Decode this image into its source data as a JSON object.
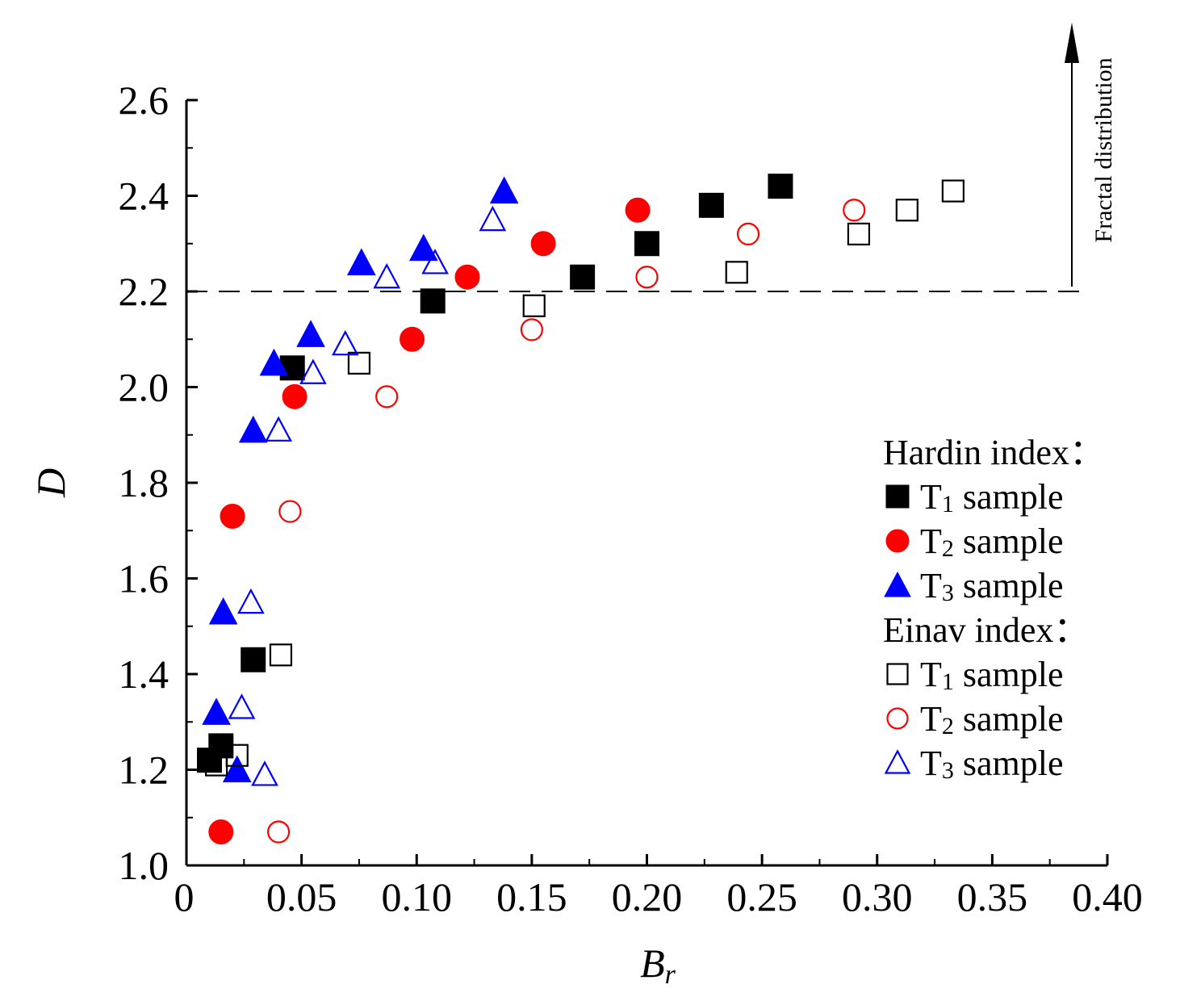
{
  "chart_data": {
    "type": "scatter",
    "title": "",
    "xlabel": "Br",
    "ylabel": "D",
    "xlim": [
      0,
      0.4
    ],
    "ylim": [
      1.0,
      2.6
    ],
    "x_ticks": [
      "0",
      "0.05",
      "0.10",
      "0.15",
      "0.20",
      "0.25",
      "0.30",
      "0.35",
      "0.40"
    ],
    "x_tick_values": [
      0,
      0.05,
      0.1,
      0.15,
      0.2,
      0.25,
      0.3,
      0.35,
      0.4
    ],
    "y_ticks": [
      "1.0",
      "1.2",
      "1.4",
      "1.6",
      "1.8",
      "2.0",
      "2.2",
      "2.4",
      "2.6"
    ],
    "y_tick_values": [
      1.0,
      1.2,
      1.4,
      1.6,
      1.8,
      2.0,
      2.2,
      2.4,
      2.6
    ],
    "grid": false,
    "reference_line": {
      "y": 2.2,
      "style": "dashed"
    },
    "annotation": "Fractal distribution",
    "legend": {
      "placement": "right",
      "groups": [
        {
          "title": "Hardin index：",
          "entries": [
            0,
            1,
            2
          ]
        },
        {
          "title": "Einav index：",
          "entries": [
            3,
            4,
            5
          ]
        }
      ]
    },
    "series": [
      {
        "name": "T1 sample",
        "sub": "1",
        "group": "Hardin index",
        "marker": "square",
        "filled": true,
        "color": "#000000",
        "points": [
          [
            0.01,
            1.22
          ],
          [
            0.015,
            1.25
          ],
          [
            0.029,
            1.43
          ],
          [
            0.046,
            2.04
          ],
          [
            0.107,
            2.18
          ],
          [
            0.172,
            2.23
          ],
          [
            0.2,
            2.3
          ],
          [
            0.228,
            2.38
          ],
          [
            0.258,
            2.42
          ]
        ]
      },
      {
        "name": "T2 sample",
        "sub": "2",
        "group": "Hardin index",
        "marker": "circle",
        "filled": true,
        "color": "#ff0000",
        "points": [
          [
            0.015,
            1.07
          ],
          [
            0.02,
            1.73
          ],
          [
            0.047,
            1.98
          ],
          [
            0.098,
            2.1
          ],
          [
            0.122,
            2.23
          ],
          [
            0.155,
            2.3
          ],
          [
            0.196,
            2.37
          ]
        ]
      },
      {
        "name": "T3 sample",
        "sub": "3",
        "group": "Hardin index",
        "marker": "triangle",
        "filled": true,
        "color": "#0000ff",
        "points": [
          [
            0.013,
            1.32
          ],
          [
            0.016,
            1.53
          ],
          [
            0.022,
            1.2
          ],
          [
            0.029,
            1.91
          ],
          [
            0.038,
            2.05
          ],
          [
            0.054,
            2.11
          ],
          [
            0.076,
            2.26
          ],
          [
            0.103,
            2.29
          ],
          [
            0.138,
            2.41
          ]
        ]
      },
      {
        "name": "T1 sample",
        "sub": "1",
        "group": "Einav index",
        "marker": "square",
        "filled": false,
        "color": "#000000",
        "points": [
          [
            0.013,
            1.21
          ],
          [
            0.022,
            1.23
          ],
          [
            0.041,
            1.44
          ],
          [
            0.075,
            2.05
          ],
          [
            0.151,
            2.17
          ],
          [
            0.239,
            2.24
          ],
          [
            0.292,
            2.32
          ],
          [
            0.313,
            2.37
          ],
          [
            0.333,
            2.41
          ]
        ]
      },
      {
        "name": "T2 sample",
        "sub": "2",
        "group": "Einav index",
        "marker": "circle",
        "filled": false,
        "color": "#ff0000",
        "points": [
          [
            0.04,
            1.07
          ],
          [
            0.045,
            1.74
          ],
          [
            0.087,
            1.98
          ],
          [
            0.15,
            2.12
          ],
          [
            0.2,
            2.23
          ],
          [
            0.244,
            2.32
          ],
          [
            0.29,
            2.37
          ]
        ]
      },
      {
        "name": "T3 sample",
        "sub": "3",
        "group": "Einav index",
        "marker": "triangle",
        "filled": false,
        "color": "#0000ff",
        "points": [
          [
            0.024,
            1.33
          ],
          [
            0.028,
            1.55
          ],
          [
            0.034,
            1.19
          ],
          [
            0.04,
            1.91
          ],
          [
            0.055,
            2.03
          ],
          [
            0.069,
            2.09
          ],
          [
            0.087,
            2.23
          ],
          [
            0.108,
            2.26
          ],
          [
            0.133,
            2.35
          ]
        ]
      }
    ]
  }
}
